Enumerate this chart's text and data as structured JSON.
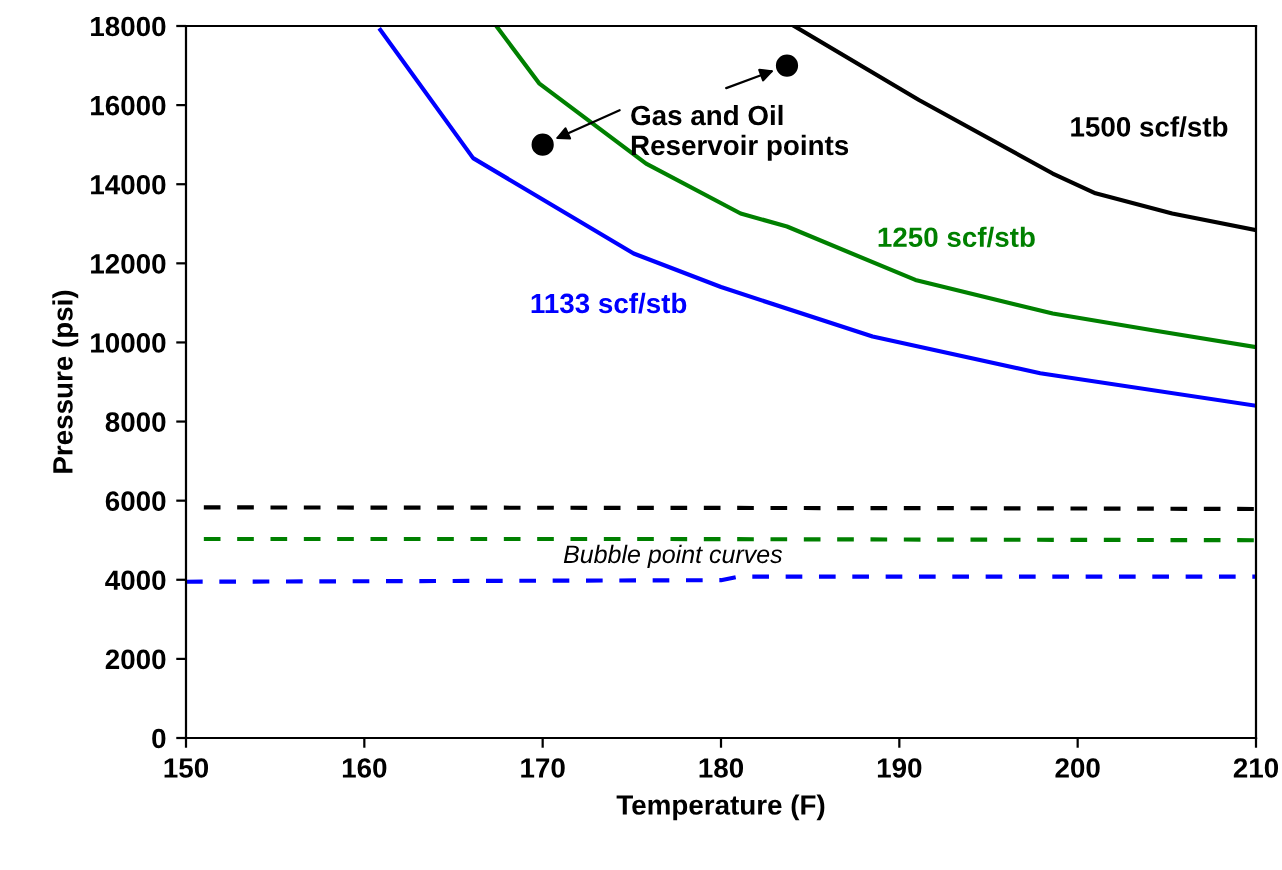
{
  "chart_data": {
    "type": "line",
    "xlabel": "Temperature (F)",
    "ylabel": "Pressure (psi)",
    "xlim": [
      150,
      210
    ],
    "xticks": [
      150,
      160,
      170,
      180,
      190,
      200,
      210
    ],
    "ylim": [
      0,
      18000
    ],
    "yticks": [
      0,
      2000,
      4000,
      6000,
      8000,
      10000,
      12000,
      14000,
      16000,
      18000
    ],
    "grid": false,
    "legend": false,
    "marker": "none",
    "series": [
      {
        "name": "1133 scf/stb",
        "color": "#0000ff",
        "line_style": "solid",
        "x": [
          160.9,
          166.1,
          175.1,
          180,
          188.5,
          197.9,
          210
        ],
        "values": [
          17900,
          14660,
          12250,
          11400,
          10150,
          9220,
          8400
        ]
      },
      {
        "name": "1250 scf/stb",
        "color": "#008000",
        "line_style": "solid",
        "x": [
          167.4,
          169.8,
          175.8,
          181.1,
          183.7,
          190.9,
          198.6,
          204.2,
          210
        ],
        "values": [
          18000,
          16550,
          14520,
          13260,
          12930,
          11580,
          10730,
          10310,
          9880
        ]
      },
      {
        "name": "1500 scf/stb",
        "color": "#000000",
        "line_style": "solid",
        "x": [
          184.1,
          191.1,
          198.6,
          201,
          205.3,
          210
        ],
        "values": [
          18000,
          16130,
          14270,
          13770,
          13260,
          12840
        ]
      },
      {
        "color": "#000000",
        "line_style": "dashed",
        "x": [
          151,
          193,
          210
        ],
        "values": [
          5830,
          5810,
          5790
        ]
      },
      {
        "color": "#008000",
        "line_style": "dashed",
        "x": [
          151,
          177,
          210
        ],
        "values": [
          5030,
          5030,
          5000
        ]
      },
      {
        "color": "#0000ff",
        "line_style": "dashed",
        "x": [
          150,
          180,
          181,
          210
        ],
        "values": [
          3950,
          3990,
          4080,
          4080
        ]
      },
      {
        "type": "scatter",
        "color": "#000000",
        "marker": "circle",
        "x": [
          170,
          183.7
        ],
        "values": [
          15000,
          17000
        ]
      }
    ],
    "annotations": [
      {
        "text": "Gas and Oil\nReservoir points",
        "x": 170,
        "y": 15000
      },
      "Bubble point curves"
    ]
  }
}
